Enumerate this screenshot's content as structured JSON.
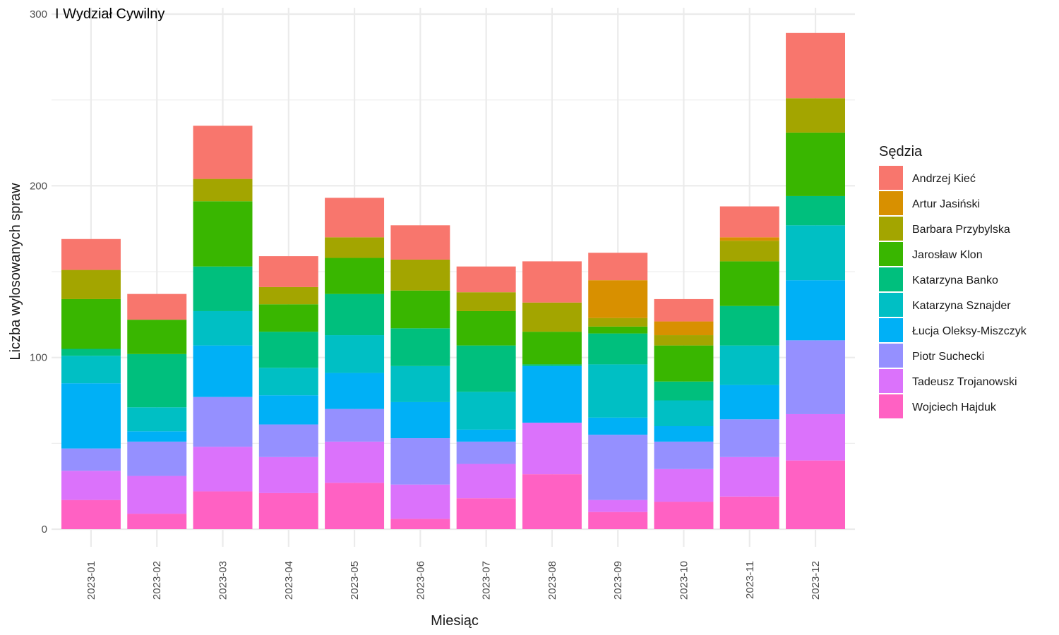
{
  "chart_data": {
    "type": "bar",
    "stacked": true,
    "title": "I Wydział Cywilny",
    "xlabel": "Miesiąc",
    "ylabel": "Liczba wylosowanych spraw",
    "ylim": [
      0,
      300
    ],
    "yticks": [
      0,
      100,
      200,
      300
    ],
    "grid": true,
    "legend": {
      "title": "Sędzia",
      "position": "right"
    },
    "categories": [
      "2023-01",
      "2023-02",
      "2023-03",
      "2023-04",
      "2023-05",
      "2023-06",
      "2023-07",
      "2023-08",
      "2023-09",
      "2023-10",
      "2023-11",
      "2023-12"
    ],
    "series": [
      {
        "name": "Wojciech Hajduk",
        "color": "#FF61C3",
        "values": [
          17,
          9,
          22,
          21,
          27,
          6,
          18,
          32,
          10,
          16,
          19,
          40
        ]
      },
      {
        "name": "Tadeusz Trojanowski",
        "color": "#DB72FB",
        "values": [
          17,
          22,
          26,
          21,
          24,
          20,
          20,
          30,
          7,
          19,
          23,
          27
        ]
      },
      {
        "name": "Piotr Suchecki",
        "color": "#9590FF",
        "values": [
          13,
          20,
          29,
          19,
          19,
          27,
          13,
          0,
          38,
          16,
          22,
          43
        ]
      },
      {
        "name": "Łucja Oleksy-Miszczyk",
        "color": "#00B0F6",
        "values": [
          38,
          6,
          30,
          17,
          21,
          21,
          7,
          33,
          10,
          9,
          20,
          35
        ]
      },
      {
        "name": "Katarzyna Sznajder",
        "color": "#00BFC4",
        "values": [
          16,
          14,
          20,
          16,
          22,
          21,
          22,
          0,
          31,
          15,
          23,
          32
        ]
      },
      {
        "name": "Katarzyna Banko",
        "color": "#00BF7D",
        "values": [
          4,
          31,
          26,
          21,
          24,
          22,
          27,
          1,
          18,
          11,
          23,
          17
        ]
      },
      {
        "name": "Jarosław Klon",
        "color": "#39B600",
        "values": [
          29,
          20,
          38,
          16,
          21,
          22,
          20,
          19,
          4,
          21,
          26,
          37
        ]
      },
      {
        "name": "Barbara Przybylska",
        "color": "#A3A500",
        "values": [
          17,
          0,
          13,
          10,
          12,
          18,
          11,
          17,
          5,
          6,
          12,
          20
        ]
      },
      {
        "name": "Artur Jasiński",
        "color": "#D89000",
        "values": [
          0,
          0,
          0,
          0,
          0,
          0,
          0,
          0,
          22,
          8,
          2,
          0
        ]
      },
      {
        "name": "Andrzej Kieć",
        "color": "#F8766D",
        "values": [
          18,
          15,
          31,
          18,
          23,
          20,
          15,
          24,
          16,
          13,
          18,
          38
        ]
      }
    ]
  }
}
